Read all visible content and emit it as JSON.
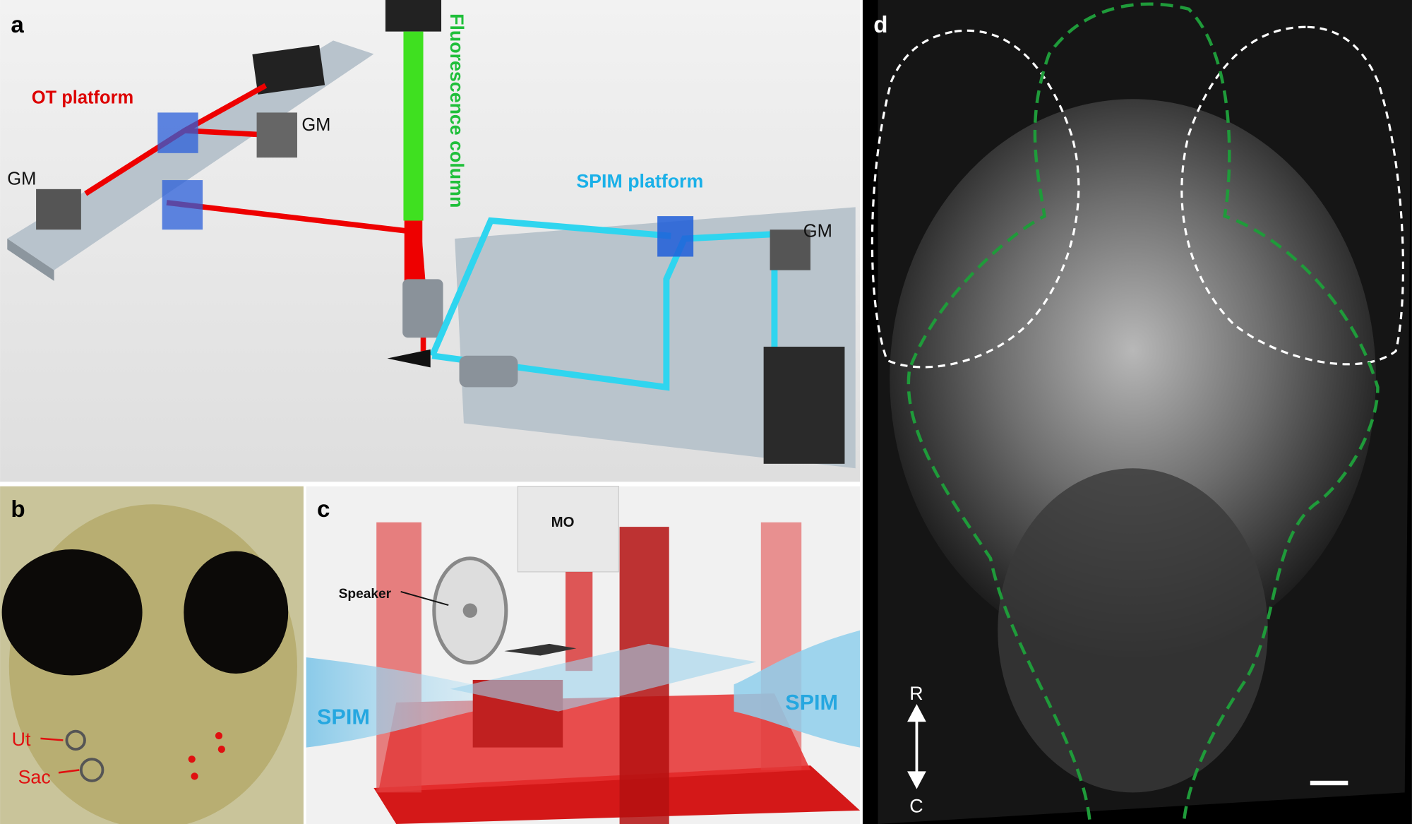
{
  "panel_a": {
    "label": "a",
    "ot_platform": "OT platform",
    "gm_top": "GM",
    "gm_left": "GM",
    "gm_right": "GM",
    "fluorescence_column": "Fluorescence column",
    "spim_platform": "SPIM platform"
  },
  "panel_b": {
    "label": "b",
    "ut": "Ut",
    "sac": "Sac"
  },
  "panel_c": {
    "label": "c",
    "mo": "MO",
    "speaker": "Speaker",
    "spim_left": "SPIM",
    "spim_right": "SPIM"
  },
  "panel_d": {
    "label": "d",
    "rostral": "R",
    "caudal": "C"
  }
}
